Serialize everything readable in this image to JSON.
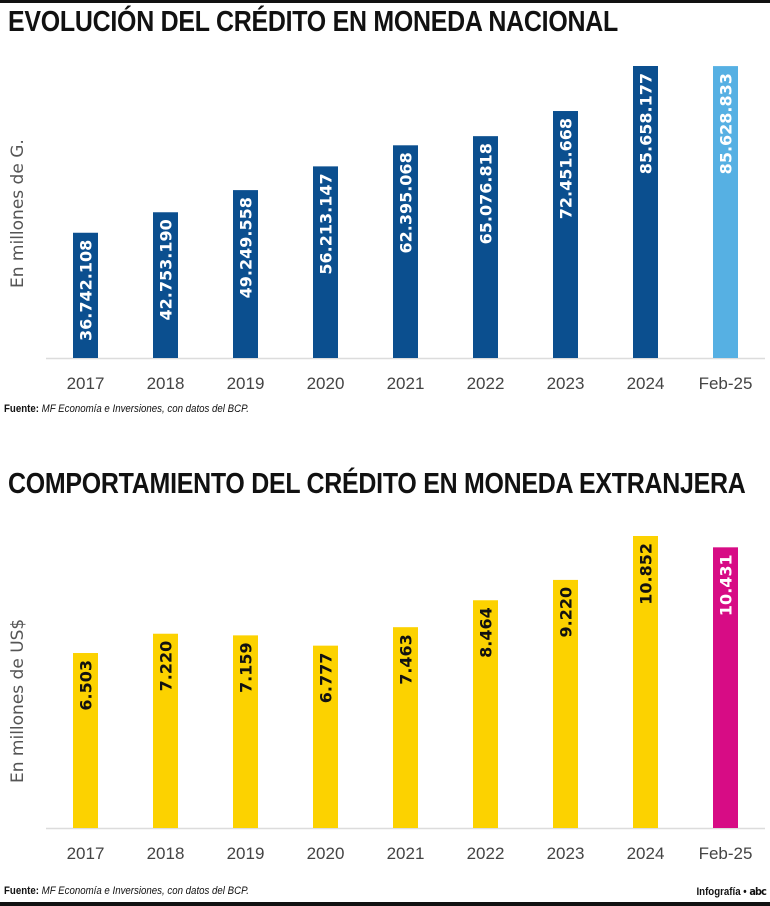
{
  "chart_data": [
    {
      "type": "bar",
      "title": "EVOLUCIÓN DEL CRÉDITO EN MONEDA NACIONAL",
      "xlabel": "",
      "ylabel": "En millones de G.",
      "categories": [
        "2017",
        "2018",
        "2019",
        "2020",
        "2021",
        "2022",
        "2023",
        "2024",
        "Feb-25"
      ],
      "values": [
        36742.108,
        42753.19,
        49249.558,
        56213.147,
        62395.068,
        65076.818,
        72451.668,
        85658.177,
        85628.833
      ],
      "value_labels": [
        "36.742.108",
        "42.753.190",
        "49.249.558",
        "56.213.147",
        "62.395.068",
        "65.076.818",
        "72.451.668",
        "85.658.177",
        "85.628.833"
      ],
      "value_unit_note": "values in thousands of millones de G. as plotted (label dots are thousands separators)",
      "ylim": [
        0,
        85658.177
      ],
      "grid": false,
      "bar_color": "#0b4f8f",
      "highlight_color": "#56b0e3",
      "highlight_index": 8,
      "label_color": "#ffffff",
      "highlight_label_color": "#ffffff",
      "source_label": "Fuente:",
      "source_text": "MF Economía e Inversiones, con datos del BCP."
    },
    {
      "type": "bar",
      "title": "COMPORTAMIENTO DEL CRÉDITO EN MONEDA EXTRANJERA",
      "xlabel": "",
      "ylabel": "En millones de US$",
      "categories": [
        "2017",
        "2018",
        "2019",
        "2020",
        "2021",
        "2022",
        "2023",
        "2024",
        "Feb-25"
      ],
      "values": [
        6503,
        7220,
        7159,
        6777,
        7463,
        8464,
        9220,
        10852,
        10431
      ],
      "value_labels": [
        "6.503",
        "7.220",
        "7.159",
        "6.777",
        "7.463",
        "8.464",
        "9.220",
        "10.852",
        "10.431"
      ],
      "ylim": [
        0,
        10852
      ],
      "grid": false,
      "bar_color": "#fcd200",
      "highlight_color": "#d70c85",
      "highlight_index": 8,
      "label_color": "#111111",
      "highlight_label_color": "#ffffff",
      "source_label": "Fuente:",
      "source_text": "MF Economía e Inversiones, con datos del BCP."
    }
  ],
  "footer": {
    "credit_label": "Infografía",
    "separator": "•",
    "logo_text": "abc"
  }
}
